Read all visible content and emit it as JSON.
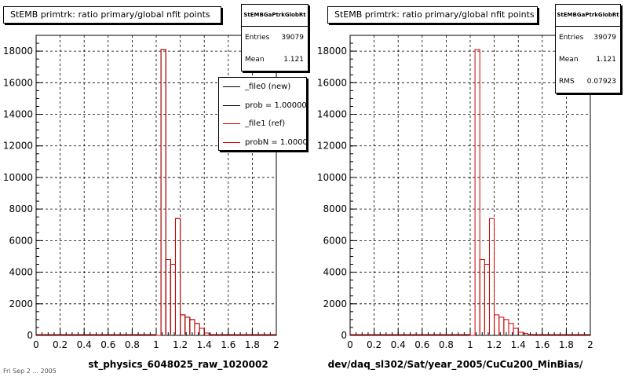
{
  "footer": "Fri Sep 2 ... 2005",
  "chart_data": [
    {
      "type": "bar",
      "title": "StEMB primtrk: ratio primary/global nfit points",
      "xlabel": "st_physics_6048025_raw_1020002",
      "ylabel": "",
      "xlim": [
        0,
        2
      ],
      "ylim": [
        0,
        19000
      ],
      "x_ticks": [
        "0",
        "0.2",
        "0.4",
        "0.6",
        "0.8",
        "1",
        "1.2",
        "1.4",
        "1.6",
        "1.8",
        "2"
      ],
      "y_ticks": [
        "0",
        "2000",
        "4000",
        "6000",
        "8000",
        "10000",
        "12000",
        "14000",
        "16000",
        "18000"
      ],
      "grid": true,
      "bin_edges": [
        1.0,
        1.04,
        1.08,
        1.12,
        1.16,
        1.2,
        1.24,
        1.28,
        1.32,
        1.36,
        1.4,
        1.44
      ],
      "series": [
        {
          "name": "_file0 (new)",
          "color": "#000000",
          "values": [
            0,
            18100,
            4800,
            4500,
            7400,
            1300,
            1150,
            1000,
            750,
            450,
            150
          ]
        },
        {
          "name": "_file1 (ref)",
          "color": "#cc0000",
          "values": [
            0,
            18100,
            4800,
            4500,
            7400,
            1300,
            1150,
            1000,
            750,
            450,
            150
          ]
        }
      ],
      "stats": {
        "header": "StEMBGaPtrkGlobRt",
        "entries_label": "Entries",
        "entries": "39079",
        "mean_label": "Mean",
        "mean": "1.121"
      },
      "legend": {
        "position": "top-right",
        "items": [
          {
            "label": "_file0 (new)",
            "color": "#000000"
          },
          {
            "label": "prob = 1.000000",
            "color": "#000000"
          },
          {
            "label": "_file1 (ref)",
            "color": "#cc0000"
          },
          {
            "label": "probN = 1.000000",
            "color": "#cc0000"
          }
        ]
      }
    },
    {
      "type": "bar",
      "title": "StEMB primtrk: ratio primary/global nfit points",
      "xlabel": "dev/daq_sl302/Sat/year_2005/CuCu200_MinBias/",
      "ylabel": "",
      "xlim": [
        0,
        2
      ],
      "ylim": [
        0,
        19000
      ],
      "x_ticks": [
        "0",
        "0.2",
        "0.4",
        "0.6",
        "0.8",
        "1",
        "1.2",
        "1.4",
        "1.6",
        "1.8",
        "2"
      ],
      "y_ticks": [
        "0",
        "2000",
        "4000",
        "6000",
        "8000",
        "10000",
        "12000",
        "14000",
        "16000",
        "18000"
      ],
      "grid": true,
      "bin_edges": [
        1.0,
        1.04,
        1.08,
        1.12,
        1.16,
        1.2,
        1.24,
        1.28,
        1.32,
        1.36,
        1.4,
        1.44,
        1.48,
        1.52
      ],
      "series": [
        {
          "name": "",
          "color": "#cc0000",
          "values": [
            0,
            18100,
            4800,
            4500,
            7400,
            1300,
            1150,
            1000,
            750,
            450,
            200,
            120,
            60
          ]
        }
      ],
      "stats": {
        "header": "StEMBGaPtrkGlobRt",
        "entries_label": "Entries",
        "entries": "39079",
        "mean_label": "Mean",
        "mean": "1.121",
        "rms_label": "RMS",
        "rms": "0.07923"
      }
    }
  ]
}
